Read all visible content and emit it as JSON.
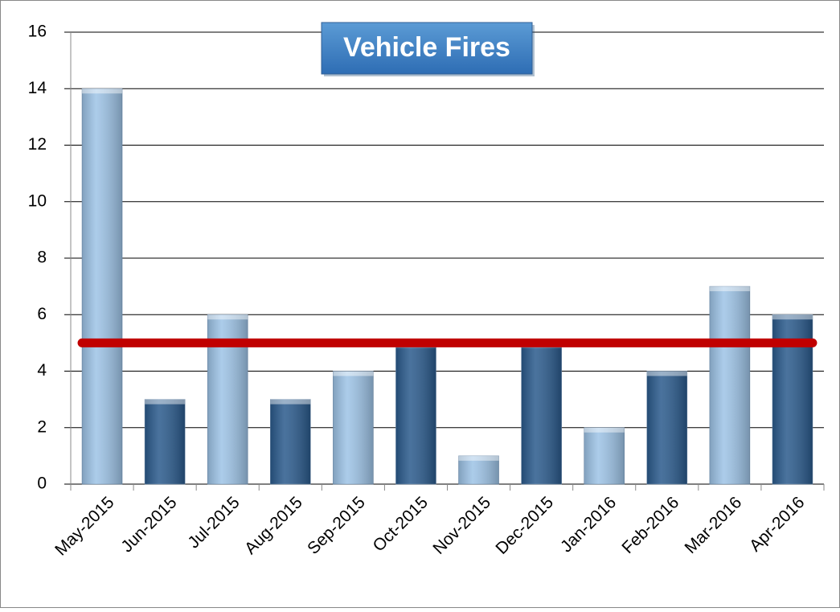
{
  "chart_data": {
    "type": "bar",
    "title": "Vehicle Fires",
    "categories": [
      "May-2015",
      "Jun-2015",
      "Jul-2015",
      "Aug-2015",
      "Sep-2015",
      "Oct-2015",
      "Nov-2015",
      "Dec-2015",
      "Jan-2016",
      "Feb-2016",
      "Mar-2016",
      "Apr-2016"
    ],
    "values": [
      14,
      3,
      6,
      3,
      4,
      5,
      1,
      5,
      2,
      4,
      7,
      6
    ],
    "colors": [
      "#9dc3e6",
      "#2a5a8c",
      "#9dc3e6",
      "#2a5a8c",
      "#9dc3e6",
      "#2a5a8c",
      "#9dc3e6",
      "#2a5a8c",
      "#9dc3e6",
      "#2a5a8c",
      "#9dc3e6",
      "#2a5a8c"
    ],
    "average_line": {
      "value": 5,
      "color": "#c00000"
    },
    "ylim": [
      0,
      16
    ],
    "yticks": [
      0,
      2,
      4,
      6,
      8,
      10,
      12,
      14,
      16
    ],
    "grid": true
  }
}
